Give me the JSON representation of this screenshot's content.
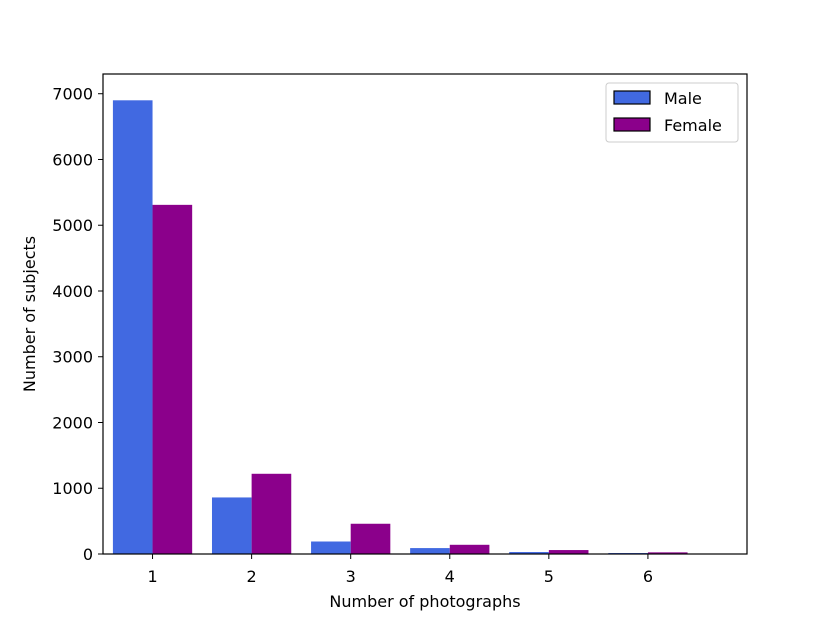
{
  "chart_data": {
    "type": "bar",
    "title": "",
    "xlabel": "Number of photographs",
    "ylabel": "Number of subjects",
    "categories": [
      "1",
      "2",
      "3",
      "4",
      "5",
      "6"
    ],
    "category_values": [
      1,
      2,
      3,
      4,
      5,
      6
    ],
    "xlim": [
      0.5,
      7.0
    ],
    "ylim": [
      0,
      7300
    ],
    "yticks": [
      0,
      1000,
      2000,
      3000,
      4000,
      5000,
      6000,
      7000
    ],
    "grid": false,
    "legend_position": "top-right",
    "series": [
      {
        "name": "Male",
        "color": "#4169e1",
        "values": [
          6900,
          860,
          190,
          90,
          30,
          15
        ]
      },
      {
        "name": "Female",
        "color": "#8b008b",
        "values": [
          5310,
          1220,
          460,
          140,
          60,
          25
        ]
      }
    ]
  }
}
